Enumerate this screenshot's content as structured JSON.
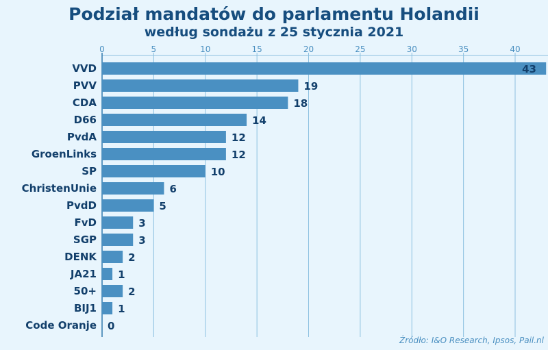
{
  "chart_data": {
    "type": "bar",
    "orientation": "horizontal",
    "title": "Podział mandatów do parlamentu Holandii",
    "subtitle": "według sondażu z 25 stycznia 2021",
    "source": "Źródło: I&O Research, Ipsos, Pail.nl",
    "categories": [
      "VVD",
      "PVV",
      "CDA",
      "D66",
      "PvdA",
      "GroenLinks",
      "SP",
      "ChristenUnie",
      "PvdD",
      "FvD",
      "SGP",
      "DENK",
      "JA21",
      "50+",
      "BIJ1",
      "Code Oranje"
    ],
    "values": [
      43,
      19,
      18,
      14,
      12,
      12,
      10,
      6,
      5,
      3,
      3,
      2,
      1,
      2,
      1,
      0
    ],
    "xlim": [
      0,
      43
    ],
    "xticks": [
      0,
      5,
      10,
      15,
      20,
      25,
      30,
      35,
      40
    ],
    "grid": true,
    "axis_position": "top",
    "colors": {
      "bar": "#4a90c2",
      "background": "#e8f5fd",
      "text": "#123f6b",
      "grid": "#8cc0e0"
    }
  }
}
